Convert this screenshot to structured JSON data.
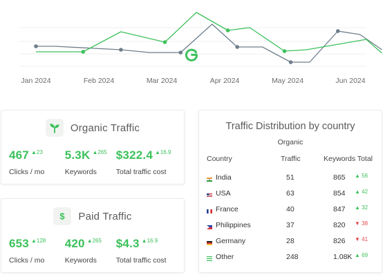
{
  "chart_data": {
    "type": "line",
    "x_ticks": [
      "Jan 2024",
      "Feb 2024",
      "Mar 2024",
      "Apr 2024",
      "May 2024",
      "Jun 2024"
    ],
    "colors": {
      "green": "#3cc15b",
      "gray": "#6e7d8a"
    },
    "series": [
      {
        "color": "green",
        "points": [
          [
            0,
            75
          ],
          [
            0.75,
            75
          ],
          [
            1.35,
            46
          ],
          [
            2.05,
            61
          ],
          [
            2.55,
            18
          ],
          [
            3.05,
            44
          ],
          [
            3.4,
            40
          ],
          [
            3.95,
            74
          ],
          [
            4.3,
            72
          ],
          [
            5.25,
            57
          ],
          [
            5.5,
            77
          ]
        ],
        "markers": [
          1,
          3,
          5,
          7
        ]
      },
      {
        "color": "gray",
        "points": [
          [
            0,
            67
          ],
          [
            0.3,
            67
          ],
          [
            1.35,
            72
          ],
          [
            1.8,
            76
          ],
          [
            2.3,
            76
          ],
          [
            2.8,
            35
          ],
          [
            3.2,
            68
          ],
          [
            3.6,
            68
          ],
          [
            4.05,
            90
          ],
          [
            4.35,
            90
          ],
          [
            4.8,
            45
          ],
          [
            5.15,
            50
          ],
          [
            5.5,
            72
          ]
        ],
        "markers": [
          0,
          2,
          4,
          6,
          8,
          10
        ]
      }
    ],
    "marker_icon": "google-g-icon"
  },
  "organic": {
    "title": "Organic Traffic",
    "icon": "sprout-icon",
    "metrics": [
      {
        "value": "467",
        "delta": "23",
        "label": "Clicks / mo"
      },
      {
        "value": "5.3K",
        "delta": "265",
        "label": "Keywords"
      },
      {
        "value": "$322.4",
        "delta": "16.9",
        "label": "Total traffic cost"
      }
    ]
  },
  "paid": {
    "title": "Paid Traffic",
    "icon": "dollar-icon",
    "metrics": [
      {
        "value": "653",
        "delta": "128",
        "label": "Clicks / mo"
      },
      {
        "value": "420",
        "delta": "265",
        "label": "Keywords"
      },
      {
        "value": "$4.3",
        "delta": "16.9",
        "label": "Total traffic cost"
      }
    ]
  },
  "distribution": {
    "title": "Traffic Distribution by country",
    "subtitle": "Organic",
    "columns": [
      "Country",
      "Traffic",
      "Keywords Total"
    ],
    "rows": [
      {
        "country": "India",
        "flag": "flag-india-icon",
        "traffic": "51",
        "keywords": "865",
        "delta": "56",
        "trend": "up"
      },
      {
        "country": "USA",
        "flag": "flag-usa-icon",
        "traffic": "63",
        "keywords": "854",
        "delta": "42",
        "trend": "up"
      },
      {
        "country": "France",
        "flag": "flag-france-icon",
        "traffic": "40",
        "keywords": "847",
        "delta": "32",
        "trend": "up"
      },
      {
        "country": "Philippines",
        "flag": "flag-philippines-icon",
        "traffic": "37",
        "keywords": "820",
        "delta": "38",
        "trend": "down"
      },
      {
        "country": "Germany",
        "flag": "flag-germany-icon",
        "traffic": "28",
        "keywords": "826",
        "delta": "41",
        "trend": "down"
      },
      {
        "country": "Other",
        "flag": "list-icon",
        "traffic": "248",
        "keywords": "1.08K",
        "delta": "69",
        "trend": "up"
      }
    ]
  }
}
